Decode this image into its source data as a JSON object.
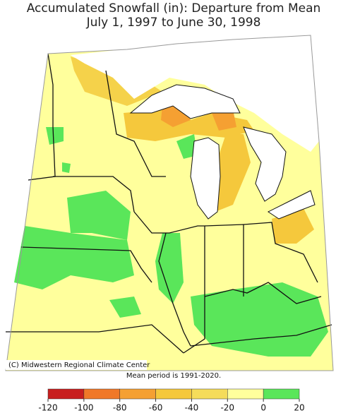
{
  "title_lines": [
    "Accumulated Snowfall (in): Departure from Mean",
    "July 1, 1997 to June 30, 1998"
  ],
  "credit": "(C) Midwestern Regional Climate Center",
  "note": "Mean period is 1991-2020.",
  "legend": {
    "bins": [
      -120,
      -100,
      -80,
      -60,
      -40,
      -20,
      0,
      20
    ],
    "colors": [
      "#c81e1e",
      "#f07828",
      "#f5a032",
      "#f5c83c",
      "#f5dc5a",
      "#ffff9c",
      "#5ae65a"
    ]
  }
}
